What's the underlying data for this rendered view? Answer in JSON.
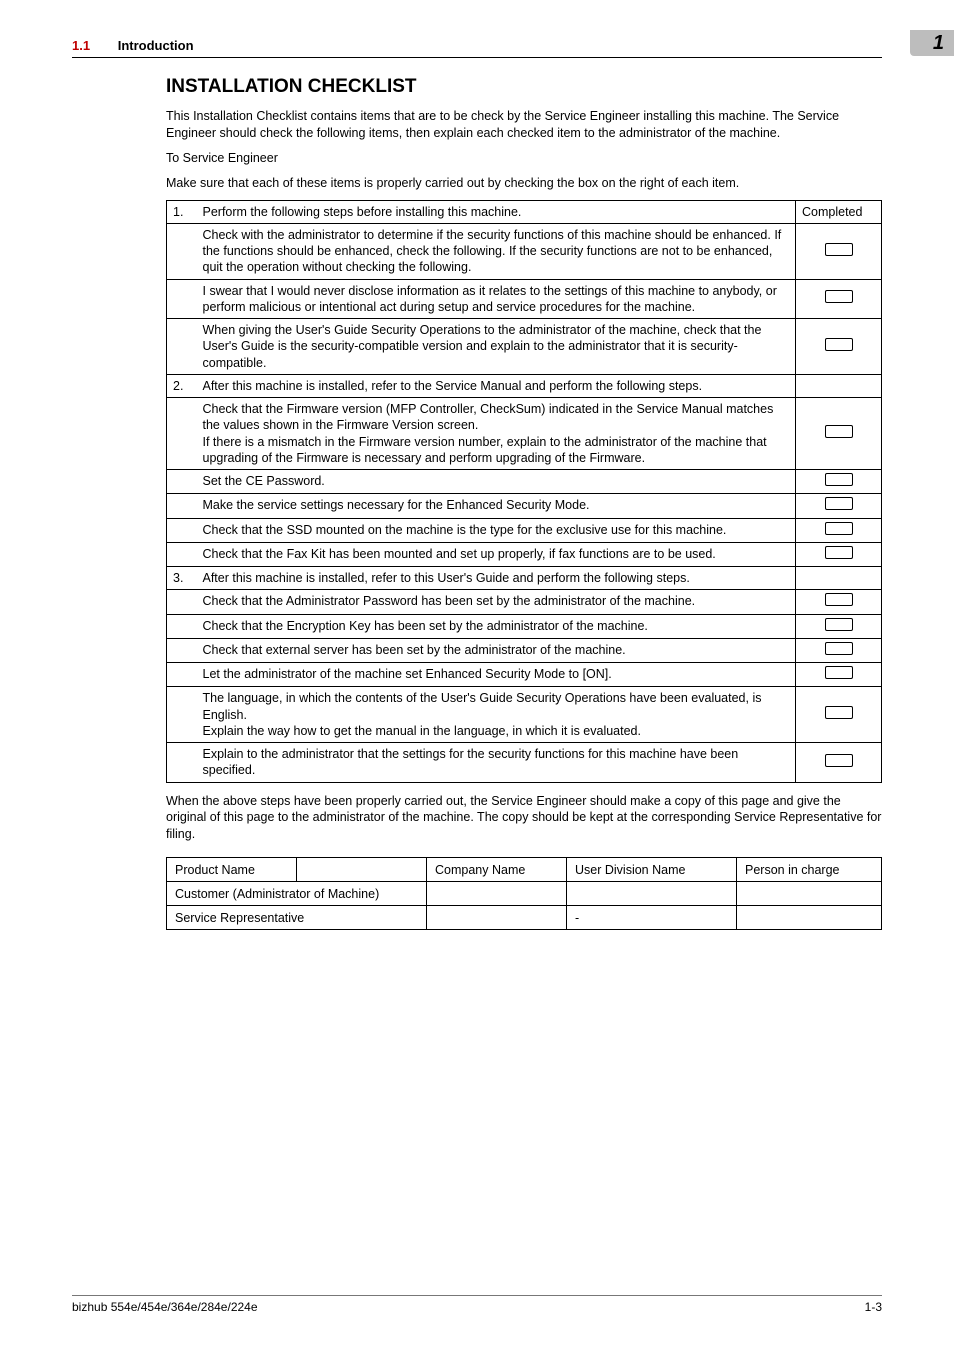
{
  "header": {
    "section_number": "1.1",
    "section_title": "Introduction",
    "chapter_badge": "1"
  },
  "title": "INSTALLATION CHECKLIST",
  "intro_paragraphs": [
    "This Installation Checklist contains items that are to be check by the Service Engineer installing this machine. The Service Engineer should check the following items, then explain each checked item to the administrator of the machine.",
    "To Service Engineer",
    "Make sure that each of these items is properly carried out by checking the box on the right of each item."
  ],
  "checklist": {
    "completed_header": "Completed",
    "rows": [
      {
        "num": "1.",
        "text": "Perform the following steps before installing this machine.",
        "checkbox": false
      },
      {
        "num": "",
        "text": "Check with the administrator to determine if the security functions of this machine should be enhanced. If the functions should be enhanced, check the following. If the security functions are not to be enhanced, quit the operation without checking the following.",
        "checkbox": true
      },
      {
        "num": "",
        "text": "I swear that I would never disclose information as it relates to the settings of this machine to anybody, or perform malicious or intentional act during setup and service procedures for the machine.",
        "checkbox": true
      },
      {
        "num": "",
        "text": "When giving the User's Guide Security Operations to the administrator of the machine, check that the User's Guide is the security-compatible version and explain to the administrator that it is security-compatible.",
        "checkbox": true
      },
      {
        "num": "2.",
        "text": "After this machine is installed, refer to the Service Manual and perform the following steps.",
        "checkbox": false
      },
      {
        "num": "",
        "text": "Check that the Firmware version (MFP Controller, CheckSum) indicated in the Service Manual matches the values shown in the Firmware Version screen.\nIf there is a mismatch in the Firmware version number, explain to the administrator of the machine that upgrading of the Firmware is necessary and perform upgrading of the Firmware.",
        "checkbox": true
      },
      {
        "num": "",
        "text": "Set the CE Password.",
        "checkbox": true
      },
      {
        "num": "",
        "text": "Make the service settings necessary for the Enhanced Security Mode.",
        "checkbox": true
      },
      {
        "num": "",
        "text": "Check that the SSD mounted on the machine is the type for the exclusive use for this machine.",
        "checkbox": true
      },
      {
        "num": "",
        "text": "Check that the Fax Kit has been mounted and set up properly, if fax functions are to be used.",
        "checkbox": true
      },
      {
        "num": "3.",
        "text": "After this machine is installed, refer to this User's Guide and perform the following steps.",
        "checkbox": false
      },
      {
        "num": "",
        "text": "Check that the Administrator Password has been set by the administrator of the machine.",
        "checkbox": true
      },
      {
        "num": "",
        "text": "Check that the Encryption Key has been set by the administrator of the machine.",
        "checkbox": true
      },
      {
        "num": "",
        "text": "Check that external server has been set by the administrator of the machine.",
        "checkbox": true
      },
      {
        "num": "",
        "text": "Let the administrator of the machine set Enhanced Security Mode to [ON].",
        "checkbox": true
      },
      {
        "num": "",
        "text": "The language, in which the contents of the User's Guide Security Operations have been evaluated, is English.\nExplain the way how to get the manual in the language, in which it is evaluated.",
        "checkbox": true
      },
      {
        "num": "",
        "text": "Explain to the administrator that the settings for the security functions for this machine have been specified.",
        "checkbox": true
      }
    ]
  },
  "after_paragraph": "When the above steps have been properly carried out, the Service Engineer should make a copy of this page and give the original of this page to the administrator of the machine. The copy should be kept at the corresponding Service Representative for filing.",
  "sig_table": {
    "row1": [
      "Product Name",
      "",
      "Company Name",
      "User Division Name",
      "Person in charge"
    ],
    "row2_label": "Customer (Administrator of Machine)",
    "row3_label": "Service Representative",
    "row3_col3": "-"
  },
  "footer": {
    "left": "bizhub 554e/454e/364e/284e/224e",
    "right": "1-3"
  },
  "colors": {
    "section_number_color": "#c00000",
    "badge_bg": "#bdbdbd",
    "text": "#000000",
    "bg": "#ffffff"
  }
}
